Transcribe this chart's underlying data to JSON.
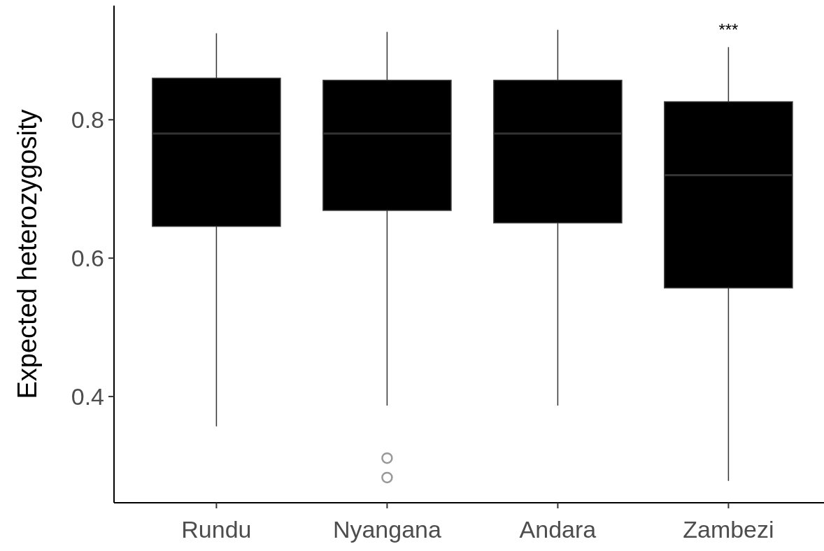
{
  "chart_data": {
    "type": "box",
    "ylabel": "Expected heterozygosity",
    "categories": [
      "Rundu",
      "Nyangana",
      "Andara",
      "Zambezi"
    ],
    "boxes": [
      {
        "low": 0.357,
        "q1": 0.646,
        "median": 0.78,
        "q3": 0.86,
        "high": 0.925
      },
      {
        "low": 0.387,
        "q1": 0.669,
        "median": 0.78,
        "q3": 0.857,
        "high": 0.927,
        "outliers": [
          0.311,
          0.283
        ]
      },
      {
        "low": 0.387,
        "q1": 0.651,
        "median": 0.78,
        "q3": 0.857,
        "high": 0.93
      },
      {
        "low": 0.278,
        "q1": 0.557,
        "median": 0.72,
        "q3": 0.826,
        "high": 0.905
      }
    ],
    "color": "#000000",
    "ylim": [
      0.2465,
      0.965
    ],
    "yticks": [
      0.4,
      0.6,
      0.8
    ],
    "grid": false,
    "annotations": [
      "***"
    ]
  }
}
